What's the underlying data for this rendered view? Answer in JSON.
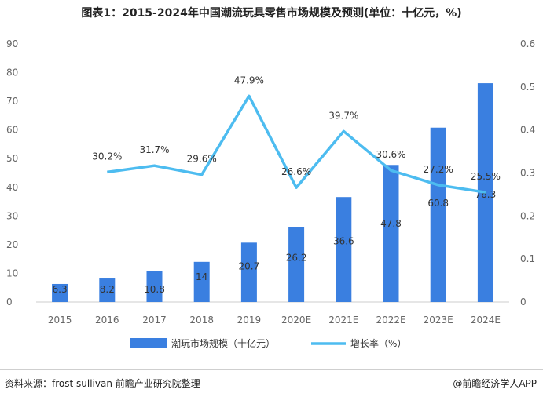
{
  "title": "图表1：2015-2024年中国潮流玩具零售市场规模及预测(单位：十亿元，%)",
  "source": "资料来源：frost sullivan 前瞻产业研究院整理",
  "brand": "@前瞻经济学人APP",
  "colors": {
    "bar": "#3a7fe0",
    "line": "#4dbcf0"
  },
  "chart_data": {
    "type": "bar",
    "categories": [
      "2015",
      "2016",
      "2017",
      "2018",
      "2019",
      "2020E",
      "2021E",
      "2022E",
      "2023E",
      "2024E"
    ],
    "left_axis": {
      "ylim": [
        0,
        90
      ],
      "ticks": [
        "0",
        "10",
        "20",
        "30",
        "40",
        "50",
        "60",
        "70",
        "80",
        "90"
      ]
    },
    "right_axis": {
      "ylim": [
        0,
        0.6
      ],
      "ticks": [
        "0",
        "0.1",
        "0.2",
        "0.3",
        "0.4",
        "0.5",
        "0.6"
      ]
    },
    "series": [
      {
        "name": "潮玩市场规模（十亿元）",
        "type": "bar",
        "axis": "left",
        "values": [
          6.3,
          8.2,
          10.8,
          14,
          20.7,
          26.2,
          36.6,
          47.8,
          60.8,
          76.3
        ],
        "labels": [
          "6.3",
          "8.2",
          "10.8",
          "14",
          "20.7",
          "26.2",
          "36.6",
          "47.8",
          "60.8",
          "76.3"
        ]
      },
      {
        "name": "增长率（%）",
        "type": "line",
        "axis": "right",
        "values": [
          null,
          0.302,
          0.317,
          0.296,
          0.479,
          0.266,
          0.397,
          0.306,
          0.272,
          0.255
        ],
        "labels": [
          "",
          "30.2%",
          "31.7%",
          "29.6%",
          "47.9%",
          "26.6%",
          "39.7%",
          "30.6%",
          "27.2%",
          "25.5%"
        ]
      }
    ]
  }
}
